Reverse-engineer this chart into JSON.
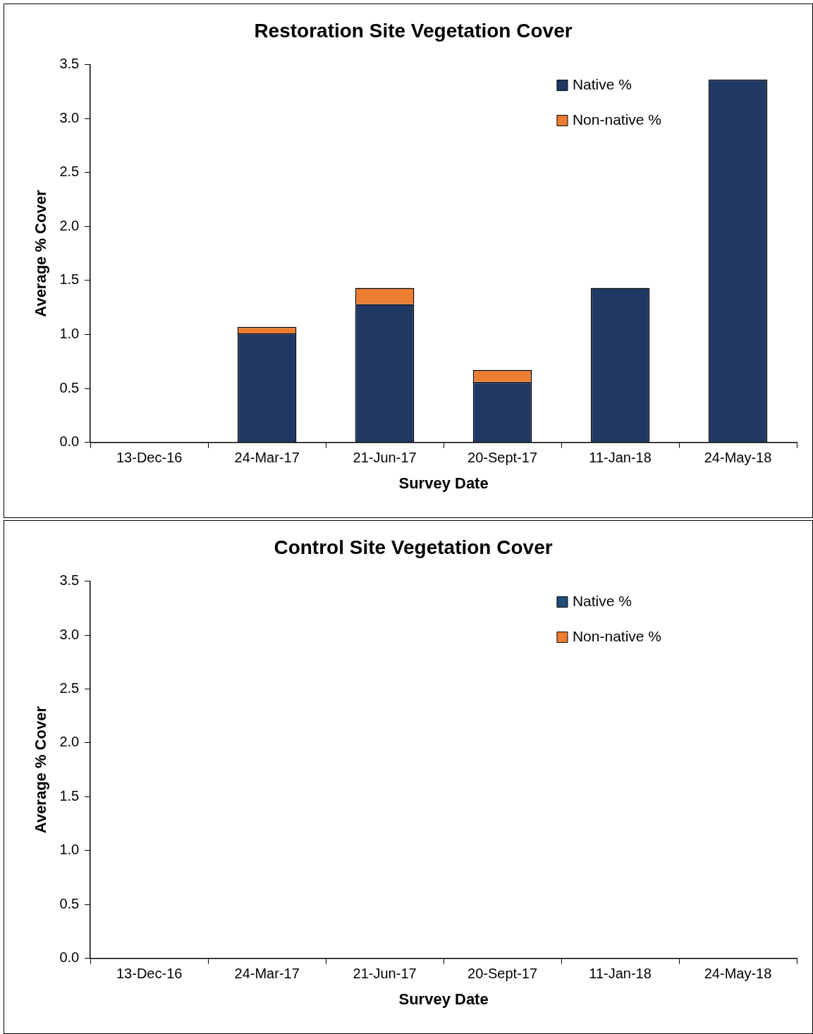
{
  "chart_data": [
    {
      "type": "bar",
      "title": "Restoration Site Vegetation Cover",
      "xlabel": "Survey Date",
      "ylabel": "Average % Cover",
      "stacked": true,
      "categories": [
        "13-Dec-16",
        "24-Mar-17",
        "21-Jun-17",
        "20-Sept-17",
        "11-Jan-18",
        "24-May-18"
      ],
      "series": [
        {
          "name": "Native %",
          "color": "#203864",
          "values": [
            0,
            1.01,
            1.28,
            0.56,
            1.43,
            3.36
          ]
        },
        {
          "name": "Non-native %",
          "color": "#ed7d31",
          "values": [
            0,
            0.06,
            0.15,
            0.11,
            0,
            0
          ]
        }
      ],
      "ylim": [
        0,
        3.5
      ],
      "yticks": [
        {
          "value": 0,
          "label": "0.0"
        },
        0.5,
        {
          "value": 1,
          "label": "1.0"
        },
        1.5,
        {
          "value": 2,
          "label": "2.0"
        },
        2.5,
        {
          "value": 3,
          "label": "3.0"
        },
        3.5
      ],
      "grid": false,
      "legend": "top right"
    },
    {
      "type": "bar",
      "title": "Control Site Vegetation Cover",
      "xlabel": "Survey Date",
      "ylabel": "Average % Cover",
      "stacked": true,
      "categories": [
        "13-Dec-16",
        "24-Mar-17",
        "21-Jun-17",
        "20-Sept-17",
        "11-Jan-18",
        "24-May-18"
      ],
      "series": [
        {
          "name": "Native %",
          "color": "#1f4e79",
          "values": [
            0,
            0,
            0,
            0,
            0,
            0
          ]
        },
        {
          "name": "Non-native %",
          "color": "#ed7d31",
          "values": [
            0,
            0,
            0,
            0,
            0,
            0
          ]
        }
      ],
      "ylim": [
        0,
        3.5
      ],
      "yticks": [
        {
          "value": 0,
          "label": "0.0"
        },
        0.5,
        {
          "value": 1,
          "label": "1.0"
        },
        1.5,
        {
          "value": 2,
          "label": "2.0"
        },
        2.5,
        {
          "value": 3,
          "label": "3.0"
        },
        3.5
      ],
      "grid": false,
      "legend": "top right"
    }
  ]
}
